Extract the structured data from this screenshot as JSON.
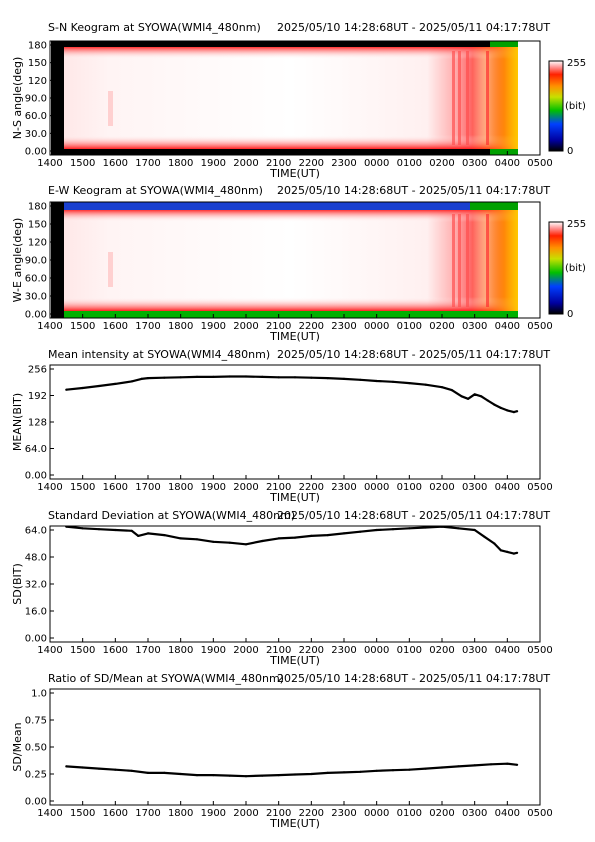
{
  "time_range": "2025/05/10 14:28:68UT - 2025/05/11 04:17:78UT",
  "time_ticks": [
    "1400",
    "1500",
    "1600",
    "1700",
    "1800",
    "1900",
    "2000",
    "2100",
    "2200",
    "2300",
    "0000",
    "0100",
    "0200",
    "0300",
    "0400",
    "0500"
  ],
  "time_axis_label": "TIME(UT)",
  "colorbar": {
    "max_label": "255",
    "min_label": "0",
    "unit_label": "(bit)"
  },
  "keograms": [
    {
      "title": "S-N Keogram at SYOWA(WMI4_480nm)",
      "ylabel": "N-S angle(deg)",
      "yticks": [
        "180",
        "150",
        "120",
        "90.0",
        "60.0",
        "30.0",
        "0.00"
      ]
    },
    {
      "title": "E-W Keogram at SYOWA(WMI4_480nm)",
      "ylabel": "W-E angle(deg)",
      "yticks": [
        "180",
        "150",
        "120",
        "90.0",
        "60.0",
        "30.0",
        "0.00"
      ]
    }
  ],
  "chart_data": [
    {
      "type": "line",
      "title": "Mean intensity at SYOWA(WMI4_480nm)",
      "xlabel": "TIME(UT)",
      "ylabel": "MEAN(BIT)",
      "yticks": [
        "256",
        "192",
        "128",
        "64.0",
        "0.00"
      ],
      "xlim": [
        14.0,
        29.0
      ],
      "ylim": [
        0,
        256
      ],
      "x": [
        14.5,
        15.0,
        15.5,
        16.0,
        16.5,
        16.8,
        17.0,
        17.5,
        18.0,
        18.5,
        19.0,
        19.5,
        20.0,
        20.5,
        21.0,
        21.5,
        22.0,
        22.5,
        23.0,
        23.5,
        24.0,
        24.5,
        25.0,
        25.5,
        26.0,
        26.3,
        26.6,
        26.8,
        27.0,
        27.2,
        27.4,
        27.6,
        27.8,
        28.0,
        28.2,
        28.3
      ],
      "values": [
        206,
        210,
        215,
        220,
        226,
        232,
        234,
        235,
        236,
        237,
        237,
        238,
        238,
        237,
        236,
        236,
        235,
        234,
        232,
        230,
        227,
        225,
        222,
        218,
        212,
        205,
        190,
        184,
        195,
        190,
        180,
        170,
        162,
        156,
        152,
        154
      ]
    },
    {
      "type": "line",
      "title": "Standard Deviation at SYOWA(WMI4_480nm)",
      "xlabel": "TIME(UT)",
      "ylabel": "SD(BIT)",
      "yticks": [
        "64.0",
        "48.0",
        "32.0",
        "16.0",
        "0.00"
      ],
      "xlim": [
        14.0,
        29.0
      ],
      "ylim": [
        0,
        64
      ],
      "x": [
        14.5,
        15.0,
        15.5,
        16.0,
        16.5,
        16.7,
        17.0,
        17.5,
        18.0,
        18.5,
        19.0,
        19.5,
        20.0,
        20.5,
        21.0,
        21.5,
        22.0,
        22.5,
        23.0,
        23.5,
        24.0,
        24.5,
        25.0,
        25.5,
        26.0,
        26.5,
        27.0,
        27.3,
        27.6,
        27.8,
        28.0,
        28.2,
        28.3
      ],
      "values": [
        66,
        65,
        64.5,
        64,
        63.5,
        60.5,
        62,
        61,
        59,
        58.5,
        57,
        56.5,
        55.5,
        57.5,
        59,
        59.5,
        60.5,
        61,
        62,
        63,
        64,
        64.5,
        65,
        65.5,
        66,
        65,
        64,
        60,
        56,
        52,
        51,
        50,
        50.5
      ]
    },
    {
      "type": "line",
      "title": "Ratio of SD/Mean at SYOWA(WMI4_480nm)",
      "xlabel": "TIME(UT)",
      "ylabel": "SD/Mean",
      "yticks": [
        "1.0",
        "0.75",
        "0.50",
        "0.25",
        "0.00"
      ],
      "xlim": [
        14.0,
        29.0
      ],
      "ylim": [
        0,
        1.0
      ],
      "x": [
        14.5,
        15.0,
        15.5,
        16.0,
        16.5,
        17.0,
        17.5,
        18.0,
        18.5,
        19.0,
        19.5,
        20.0,
        20.5,
        21.0,
        21.5,
        22.0,
        22.5,
        23.0,
        23.5,
        24.0,
        24.5,
        25.0,
        25.5,
        26.0,
        26.5,
        27.0,
        27.5,
        28.0,
        28.3
      ],
      "values": [
        0.32,
        0.31,
        0.3,
        0.29,
        0.28,
        0.26,
        0.26,
        0.25,
        0.24,
        0.24,
        0.235,
        0.23,
        0.235,
        0.24,
        0.245,
        0.25,
        0.26,
        0.265,
        0.27,
        0.28,
        0.285,
        0.29,
        0.3,
        0.31,
        0.32,
        0.33,
        0.34,
        0.345,
        0.335
      ]
    }
  ]
}
